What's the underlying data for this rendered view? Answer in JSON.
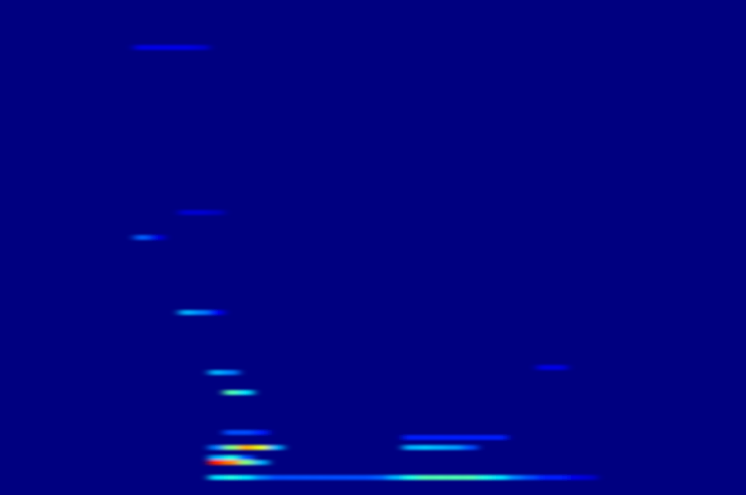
{
  "chart_data": {
    "type": "heatmap",
    "tick_labels": false,
    "xlim": [
      0,
      50
    ],
    "ylim": [
      0,
      99
    ],
    "zlim": [
      0,
      1
    ],
    "cells": {
      "x": [
        14,
        15,
        16,
        17,
        18,
        19,
        20,
        21,
        22,
        23,
        24,
        25,
        26,
        27,
        28,
        29,
        30,
        31,
        32,
        33,
        34,
        35,
        36,
        37,
        38,
        39,
        14,
        15,
        16,
        17,
        14,
        15,
        16,
        14,
        15,
        16,
        17,
        18,
        27,
        28,
        29,
        30,
        31,
        27,
        28,
        29,
        30,
        31,
        32,
        33,
        15,
        16,
        17,
        15,
        16,
        14,
        15,
        36,
        37,
        12,
        13,
        14,
        9,
        10,
        12,
        13,
        14,
        9,
        10,
        11,
        12,
        13
      ],
      "y": [
        3,
        3,
        3,
        3,
        3,
        3,
        3,
        3,
        3,
        3,
        3,
        3,
        3,
        3,
        3,
        3,
        3,
        3,
        3,
        3,
        3,
        3,
        3,
        3,
        3,
        3,
        6,
        6,
        6,
        6,
        7,
        7,
        7,
        9,
        9,
        9,
        9,
        9,
        9,
        9,
        9,
        9,
        9,
        11,
        11,
        11,
        11,
        11,
        11,
        11,
        12,
        12,
        12,
        20,
        20,
        24,
        24,
        25,
        25,
        36,
        36,
        36,
        51,
        51,
        56,
        56,
        56,
        89,
        89,
        89,
        89,
        89
      ],
      "values": [
        0.35,
        0.4,
        0.35,
        0.25,
        0.2,
        0.2,
        0.2,
        0.2,
        0.2,
        0.2,
        0.2,
        0.22,
        0.3,
        0.4,
        0.45,
        0.45,
        0.45,
        0.45,
        0.4,
        0.35,
        0.25,
        0.2,
        0.15,
        0.15,
        0.1,
        0.08,
        0.85,
        0.75,
        0.5,
        0.3,
        0.3,
        0.4,
        0.2,
        0.25,
        0.5,
        0.7,
        0.6,
        0.3,
        0.3,
        0.32,
        0.3,
        0.28,
        0.2,
        0.15,
        0.15,
        0.15,
        0.15,
        0.15,
        0.15,
        0.15,
        0.2,
        0.2,
        0.15,
        0.45,
        0.35,
        0.3,
        0.25,
        0.1,
        0.1,
        0.3,
        0.25,
        0.12,
        0.22,
        0.1,
        0.08,
        0.08,
        0.06,
        0.1,
        0.1,
        0.1,
        0.1,
        0.08
      ]
    }
  }
}
